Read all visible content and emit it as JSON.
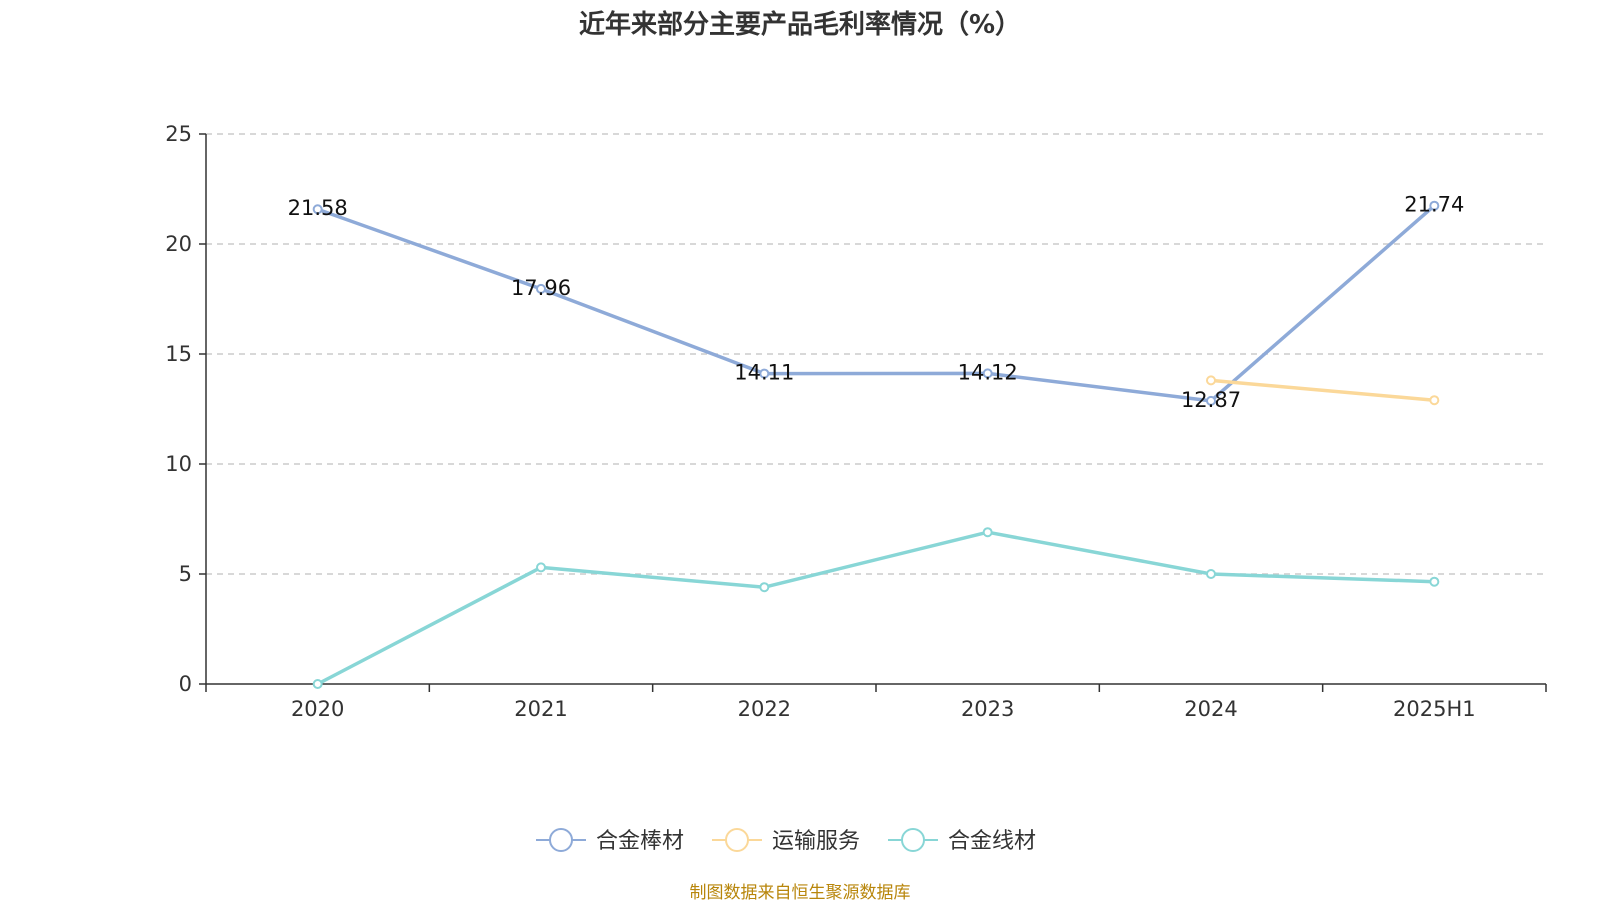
{
  "chart_data": {
    "type": "line",
    "title": "近年来部分主要产品毛利率情况（%）",
    "categories": [
      "2020",
      "2021",
      "2022",
      "2023",
      "2024",
      "2025H1"
    ],
    "ylim": [
      0,
      25
    ],
    "yticks": [
      "0",
      "5",
      "10",
      "15",
      "20",
      "25"
    ],
    "grid": true,
    "legend_position": "bottom",
    "series": [
      {
        "name": "合金棒材",
        "color": "#8eaad8",
        "values": [
          21.58,
          17.96,
          14.11,
          14.12,
          12.87,
          21.74
        ],
        "labels": [
          "21.58",
          "17.96",
          "14.11",
          "14.12",
          "12.87",
          "21.74"
        ]
      },
      {
        "name": "运输服务",
        "color": "#fbd899",
        "values": [
          null,
          null,
          null,
          null,
          13.8,
          12.9
        ],
        "labels": []
      },
      {
        "name": "合金线材",
        "color": "#88d6d6",
        "values": [
          0,
          5.3,
          4.4,
          6.9,
          5.0,
          4.65
        ],
        "labels": []
      }
    ]
  },
  "source": "制图数据来自恒生聚源数据库"
}
